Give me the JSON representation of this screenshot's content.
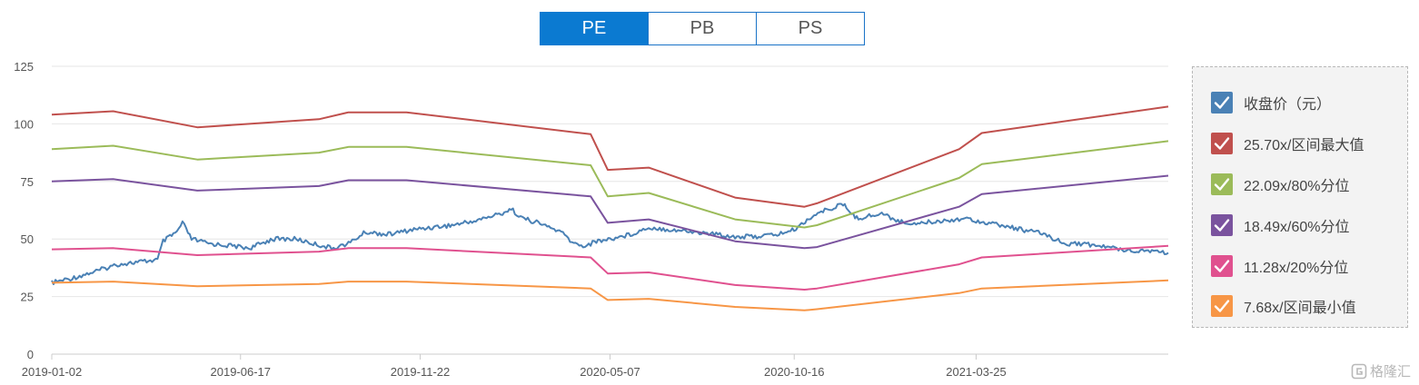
{
  "tabs": [
    {
      "label": "PE",
      "active": true
    },
    {
      "label": "PB",
      "active": false
    },
    {
      "label": "PS",
      "active": false
    }
  ],
  "watermark": {
    "text": "格隆汇"
  },
  "chart_data": {
    "type": "line",
    "title": "",
    "xlabel": "",
    "ylabel": "",
    "x_range": [
      "2019-01-02",
      "2021-09-10"
    ],
    "ylim": [
      0,
      125
    ],
    "y_ticks": [
      0,
      25,
      50,
      75,
      100,
      125
    ],
    "x_tick_labels": [
      {
        "date": "2019-01-02",
        "label": "2019-01-02"
      },
      {
        "date": "2019-06-17",
        "label": "2019-06-17"
      },
      {
        "date": "2019-11-22",
        "label": "2019-11-22"
      },
      {
        "date": "2020-05-07",
        "label": "2020-05-07"
      },
      {
        "date": "2020-10-16",
        "label": "2020-10-16"
      },
      {
        "date": "2021-03-25",
        "label": "2021-03-25"
      }
    ],
    "grid": {
      "horizontal": true,
      "vertical": false
    },
    "legend_position": "right",
    "series": [
      {
        "name": "收盘价（元）",
        "color": "#4a81b5",
        "points": [
          [
            "2019-01-02",
            31
          ],
          [
            "2019-01-20",
            33
          ],
          [
            "2019-02-10",
            36
          ],
          [
            "2019-03-01",
            39
          ],
          [
            "2019-03-20",
            40
          ],
          [
            "2019-04-05",
            41
          ],
          [
            "2019-04-10",
            49
          ],
          [
            "2019-04-22",
            53
          ],
          [
            "2019-04-27",
            57
          ],
          [
            "2019-05-05",
            50
          ],
          [
            "2019-05-20",
            48
          ],
          [
            "2019-06-10",
            47
          ],
          [
            "2019-06-25",
            46
          ],
          [
            "2019-07-15",
            50
          ],
          [
            "2019-08-05",
            50
          ],
          [
            "2019-08-20",
            48
          ],
          [
            "2019-09-05",
            46
          ],
          [
            "2019-09-20",
            48
          ],
          [
            "2019-10-05",
            53
          ],
          [
            "2019-10-25",
            52
          ],
          [
            "2019-11-15",
            54
          ],
          [
            "2019-12-01",
            55
          ],
          [
            "2019-12-20",
            56
          ],
          [
            "2020-01-10",
            58
          ],
          [
            "2020-02-01",
            61
          ],
          [
            "2020-02-10",
            63
          ],
          [
            "2020-02-20",
            59
          ],
          [
            "2020-03-05",
            57
          ],
          [
            "2020-03-25",
            53
          ],
          [
            "2020-04-05",
            48
          ],
          [
            "2020-04-15",
            47
          ],
          [
            "2020-04-25",
            49
          ],
          [
            "2020-05-07",
            50
          ],
          [
            "2020-05-25",
            52
          ],
          [
            "2020-06-10",
            55
          ],
          [
            "2020-07-01",
            54
          ],
          [
            "2020-07-20",
            53
          ],
          [
            "2020-08-10",
            52
          ],
          [
            "2020-08-25",
            51
          ],
          [
            "2020-09-10",
            51
          ],
          [
            "2020-10-01",
            52
          ],
          [
            "2020-10-16",
            54
          ],
          [
            "2020-11-01",
            60
          ],
          [
            "2020-11-15",
            63
          ],
          [
            "2020-11-28",
            65
          ],
          [
            "2020-12-10",
            59
          ],
          [
            "2021-01-01",
            61
          ],
          [
            "2021-01-20",
            57
          ],
          [
            "2021-02-05",
            57
          ],
          [
            "2021-02-25",
            58
          ],
          [
            "2021-03-15",
            59
          ],
          [
            "2021-03-25",
            58
          ],
          [
            "2021-04-15",
            56
          ],
          [
            "2021-05-05",
            54
          ],
          [
            "2021-05-25",
            52
          ],
          [
            "2021-06-10",
            48
          ],
          [
            "2021-06-25",
            48
          ],
          [
            "2021-07-10",
            47
          ],
          [
            "2021-07-25",
            46
          ],
          [
            "2021-08-10",
            45
          ],
          [
            "2021-08-25",
            45
          ],
          [
            "2021-09-10",
            44
          ]
        ]
      },
      {
        "name": "25.70x/区间最大值",
        "color": "#c0504d",
        "points": [
          [
            "2019-01-02",
            104
          ],
          [
            "2019-02-25",
            105.5
          ],
          [
            "2019-05-10",
            98.5
          ],
          [
            "2019-08-25",
            102
          ],
          [
            "2019-09-20",
            105
          ],
          [
            "2019-11-10",
            105
          ],
          [
            "2020-04-20",
            95.5
          ],
          [
            "2020-05-05",
            80
          ],
          [
            "2020-06-10",
            81
          ],
          [
            "2020-08-25",
            68
          ],
          [
            "2020-10-25",
            64
          ],
          [
            "2020-11-05",
            65.5
          ],
          [
            "2021-03-10",
            89
          ],
          [
            "2021-03-30",
            96
          ],
          [
            "2021-09-10",
            107.5
          ]
        ]
      },
      {
        "name": "22.09x/80%分位",
        "color": "#9bbb59",
        "points": [
          [
            "2019-01-02",
            89
          ],
          [
            "2019-02-25",
            90.5
          ],
          [
            "2019-05-10",
            84.5
          ],
          [
            "2019-08-25",
            87.5
          ],
          [
            "2019-09-20",
            90
          ],
          [
            "2019-11-10",
            90
          ],
          [
            "2020-04-20",
            82
          ],
          [
            "2020-05-05",
            68.5
          ],
          [
            "2020-06-10",
            70
          ],
          [
            "2020-08-25",
            58.5
          ],
          [
            "2020-10-25",
            55
          ],
          [
            "2020-11-05",
            56
          ],
          [
            "2021-03-10",
            76.5
          ],
          [
            "2021-03-30",
            82.5
          ],
          [
            "2021-09-10",
            92.5
          ]
        ]
      },
      {
        "name": "18.49x/60%分位",
        "color": "#7a539e",
        "points": [
          [
            "2019-01-02",
            75
          ],
          [
            "2019-02-25",
            76
          ],
          [
            "2019-05-10",
            71
          ],
          [
            "2019-08-25",
            73
          ],
          [
            "2019-09-20",
            75.5
          ],
          [
            "2019-11-10",
            75.5
          ],
          [
            "2020-04-20",
            68.5
          ],
          [
            "2020-05-05",
            57
          ],
          [
            "2020-06-10",
            58.5
          ],
          [
            "2020-08-25",
            49
          ],
          [
            "2020-10-25",
            46
          ],
          [
            "2020-11-05",
            46.5
          ],
          [
            "2021-03-10",
            64
          ],
          [
            "2021-03-30",
            69.5
          ],
          [
            "2021-09-10",
            77.5
          ]
        ]
      },
      {
        "name": "11.28x/20%分位",
        "color": "#e0518f",
        "points": [
          [
            "2019-01-02",
            45.5
          ],
          [
            "2019-02-25",
            46
          ],
          [
            "2019-05-10",
            43
          ],
          [
            "2019-08-25",
            44.5
          ],
          [
            "2019-09-20",
            46
          ],
          [
            "2019-11-10",
            46
          ],
          [
            "2020-04-20",
            42
          ],
          [
            "2020-05-05",
            35
          ],
          [
            "2020-06-10",
            35.5
          ],
          [
            "2020-08-25",
            30
          ],
          [
            "2020-10-25",
            28
          ],
          [
            "2020-11-05",
            28.5
          ],
          [
            "2021-03-10",
            39
          ],
          [
            "2021-03-30",
            42
          ],
          [
            "2021-09-10",
            47
          ]
        ]
      },
      {
        "name": "7.68x/区间最小值",
        "color": "#f79646",
        "points": [
          [
            "2019-01-02",
            31
          ],
          [
            "2019-02-25",
            31.5
          ],
          [
            "2019-05-10",
            29.5
          ],
          [
            "2019-08-25",
            30.5
          ],
          [
            "2019-09-20",
            31.5
          ],
          [
            "2019-11-10",
            31.5
          ],
          [
            "2020-04-20",
            28.5
          ],
          [
            "2020-05-05",
            23.5
          ],
          [
            "2020-06-10",
            24
          ],
          [
            "2020-08-25",
            20.5
          ],
          [
            "2020-10-25",
            19
          ],
          [
            "2020-11-05",
            19.5
          ],
          [
            "2021-03-10",
            26.5
          ],
          [
            "2021-03-30",
            28.5
          ],
          [
            "2021-09-10",
            32
          ]
        ]
      }
    ]
  }
}
